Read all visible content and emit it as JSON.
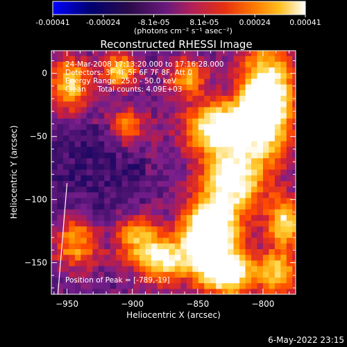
{
  "chart_data": {
    "type": "heatmap",
    "title": "Reconstructed RHESSI Image",
    "colorbar": {
      "ticks": [
        "-0.00041",
        "-0.00024",
        "-8.1e-05",
        "8.1e-05",
        "0.00024",
        "0.00041"
      ],
      "range": [
        -0.00041,
        0.00041
      ],
      "unit_label": "(photons cm⁻² s⁻¹ asec⁻²)",
      "colormap": [
        "#0000ff",
        "#000060",
        "#40106a",
        "#7a1f8c",
        "#c81e3c",
        "#ff4a00",
        "#ff9a00",
        "#ffd23c",
        "#ffffff"
      ]
    },
    "xlabel": "Heliocentric X (arcsec)",
    "ylabel": "Heliocentric Y (arcsec)",
    "xlim": [
      -962,
      -775
    ],
    "ylim": [
      -175,
      18
    ],
    "xticks": [
      -950,
      -900,
      -850,
      -800
    ],
    "yticks": [
      0,
      -50,
      -100,
      -150
    ],
    "annotations": [
      "24-Mar-2008 17:13:20.000 to 17:16:28.000",
      "Detectors: 3F 4F 5F 6F 7F 8F, Att 0",
      "Energy Range: 25.0 - 50.0 keV",
      "Clean     Total counts: 4.09E+03"
    ],
    "peak_label": "Position of Peak = [-789,-19]",
    "peak": [
      -789,
      -19
    ],
    "limb_line": [
      [
        -957,
        -175
      ],
      [
        -950,
        -87
      ]
    ],
    "sources": [
      {
        "x": -800,
        "y": -25,
        "sx": 14,
        "sy": 28,
        "a": 0.95
      },
      {
        "x": -835,
        "y": -45,
        "sx": 18,
        "sy": 14,
        "a": 0.75
      },
      {
        "x": -825,
        "y": -85,
        "sx": 16,
        "sy": 18,
        "a": 0.7
      },
      {
        "x": -840,
        "y": -125,
        "sx": 14,
        "sy": 18,
        "a": 0.75
      },
      {
        "x": -830,
        "y": -160,
        "sx": 16,
        "sy": 12,
        "a": 0.8
      },
      {
        "x": -785,
        "y": -120,
        "sx": 10,
        "sy": 14,
        "a": 0.6
      },
      {
        "x": -790,
        "y": -160,
        "sx": 10,
        "sy": 12,
        "a": 0.5
      },
      {
        "x": -880,
        "y": -150,
        "sx": 14,
        "sy": 12,
        "a": 0.6
      },
      {
        "x": -900,
        "y": -130,
        "sx": 12,
        "sy": 12,
        "a": 0.5
      },
      {
        "x": -950,
        "y": -10,
        "sx": 10,
        "sy": 14,
        "a": 0.55
      },
      {
        "x": -945,
        "y": -135,
        "sx": 12,
        "sy": 14,
        "a": 0.5
      },
      {
        "x": -912,
        "y": 0,
        "sx": 9,
        "sy": 9,
        "a": 0.55
      },
      {
        "x": -860,
        "y": -5,
        "sx": 10,
        "sy": 10,
        "a": 0.45
      },
      {
        "x": -905,
        "y": -45,
        "sx": 10,
        "sy": 10,
        "a": 0.4
      },
      {
        "x": -850,
        "y": -135,
        "sx": 12,
        "sy": 14,
        "a": 0.5
      }
    ]
  },
  "timestamp": "6-May-2022 23:15"
}
